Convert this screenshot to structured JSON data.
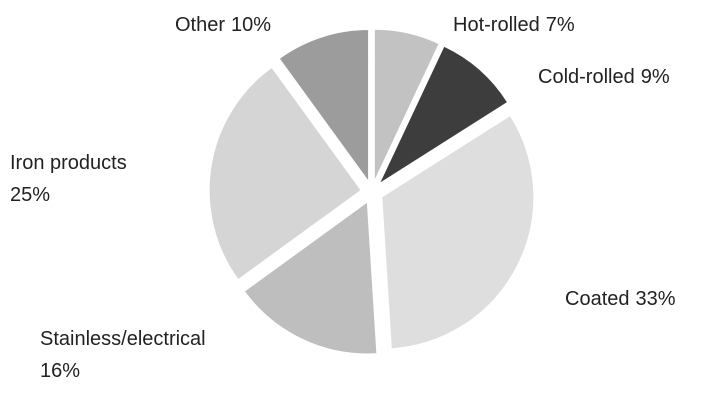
{
  "chart_data": {
    "type": "pie",
    "categories": [
      "Hot-rolled",
      "Cold-rolled",
      "Coated",
      "Stainless/electrical",
      "Iron products",
      "Other"
    ],
    "values": [
      7,
      9,
      33,
      16,
      25,
      10
    ],
    "value_labels": [
      "7%",
      "9%",
      "33%",
      "16%",
      "25%",
      "10%"
    ],
    "colors": [
      "#c2c2c2",
      "#3d3d3d",
      "#dedede",
      "#bebebe",
      "#d5d5d5",
      "#9c9c9c"
    ]
  }
}
